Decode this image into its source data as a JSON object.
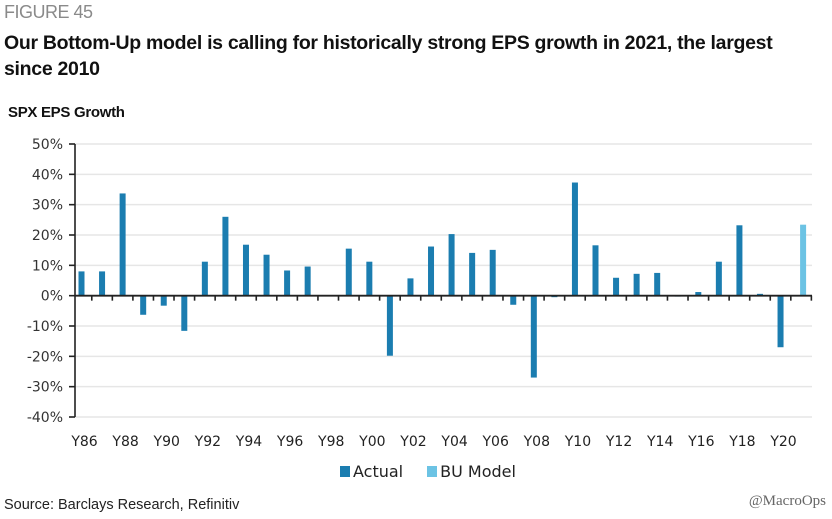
{
  "figure_label": "FIGURE 45",
  "figure_title": "Our Bottom-Up model is calling for historically strong EPS growth in 2021, the largest since 2010",
  "source": "Source: Barclays Research, Refinitiv",
  "watermark": "@MacroOps",
  "colors": {
    "actual": "#1B7DB0",
    "bu_model": "#6CC3E4",
    "grid": "#e6e6e6",
    "axis": "#222222"
  },
  "legend": [
    {
      "name": "Actual",
      "color_key": "actual"
    },
    {
      "name": "BU Model",
      "color_key": "bu_model"
    }
  ],
  "chart_data": {
    "type": "bar",
    "title": "SPX EPS Growth",
    "xlabel": "",
    "ylabel": "",
    "ylim": [
      -40,
      50
    ],
    "y_ticks": [
      50,
      40,
      30,
      20,
      10,
      0,
      -10,
      -20,
      -30,
      -40
    ],
    "y_tick_labels": [
      "50%",
      "40%",
      "30%",
      "20%",
      "10%",
      "0%",
      "-10%",
      "-20%",
      "-30%",
      "-40%"
    ],
    "grid": true,
    "legend_position": "bottom-center",
    "categories": [
      "Y86",
      "Y87",
      "Y88",
      "Y89",
      "Y90",
      "Y91",
      "Y92",
      "Y93",
      "Y94",
      "Y95",
      "Y96",
      "Y97",
      "Y98",
      "Y99",
      "Y00",
      "Y01",
      "Y02",
      "Y03",
      "Y04",
      "Y05",
      "Y06",
      "Y07",
      "Y08",
      "Y09",
      "Y10",
      "Y11",
      "Y12",
      "Y13",
      "Y14",
      "Y15",
      "Y16",
      "Y17",
      "Y18",
      "Y19",
      "Y20",
      "Y21"
    ],
    "x_tick_labels": [
      "Y86",
      "Y88",
      "Y90",
      "Y92",
      "Y94",
      "Y96",
      "Y98",
      "Y00",
      "Y02",
      "Y04",
      "Y06",
      "Y08",
      "Y10",
      "Y12",
      "Y14",
      "Y16",
      "Y18",
      "Y20"
    ],
    "series": [
      {
        "name": "Actual",
        "values": [
          8,
          8,
          33.7,
          -6.3,
          -3.3,
          -11.6,
          11.2,
          26,
          16.8,
          13.5,
          8.3,
          9.6,
          0,
          15.5,
          11.2,
          -19.8,
          5.7,
          16.2,
          20.3,
          14.1,
          15.1,
          -3,
          -27,
          -0.5,
          37.3,
          16.6,
          5.9,
          7.2,
          7.5,
          -0.3,
          1.2,
          11.2,
          23.2,
          0.6,
          -17,
          null
        ]
      },
      {
        "name": "BU Model",
        "values": [
          null,
          null,
          null,
          null,
          null,
          null,
          null,
          null,
          null,
          null,
          null,
          null,
          null,
          null,
          null,
          null,
          null,
          null,
          null,
          null,
          null,
          null,
          null,
          null,
          null,
          null,
          null,
          null,
          null,
          null,
          null,
          null,
          null,
          null,
          null,
          23.4
        ]
      }
    ]
  }
}
